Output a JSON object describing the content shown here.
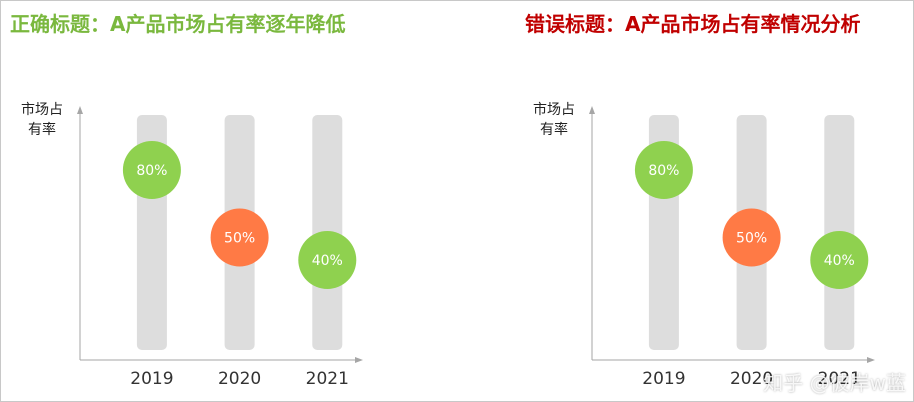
{
  "panels": [
    {
      "title": "正确标题：A产品市场占有率逐年降低",
      "title_color": "#7ab83e",
      "chart_data": {
        "type": "scatter",
        "title": "正确标题：A产品市场占有率逐年降低",
        "ylabel_lines": [
          "市场占",
          "有率"
        ],
        "categories": [
          "2019",
          "2020",
          "2021"
        ],
        "values": [
          80,
          50,
          40
        ],
        "value_labels": [
          "80%",
          "50%",
          "40%"
        ],
        "point_colors": [
          "#8fd14f",
          "#ff7a45",
          "#8fd14f"
        ],
        "ylim": [
          0,
          100
        ],
        "grid": false
      }
    },
    {
      "title": "错误标题：A产品市场占有率情况分析",
      "title_color": "#c00000",
      "chart_data": {
        "type": "scatter",
        "title": "错误标题：A产品市场占有率情况分析",
        "ylabel_lines": [
          "市场占",
          "有率"
        ],
        "categories": [
          "2019",
          "2020",
          "2021"
        ],
        "values": [
          80,
          50,
          40
        ],
        "value_labels": [
          "80%",
          "50%",
          "40%"
        ],
        "point_colors": [
          "#8fd14f",
          "#ff7a45",
          "#8fd14f"
        ],
        "ylim": [
          0,
          100
        ],
        "grid": false
      }
    }
  ],
  "watermark": "知乎 @彼岸w蓝",
  "colors": {
    "track": "#dddddd",
    "axis": "#a6a6a6",
    "point_text": "#ffffff",
    "tick_text": "#333333",
    "ylabel_text": "#222222"
  }
}
